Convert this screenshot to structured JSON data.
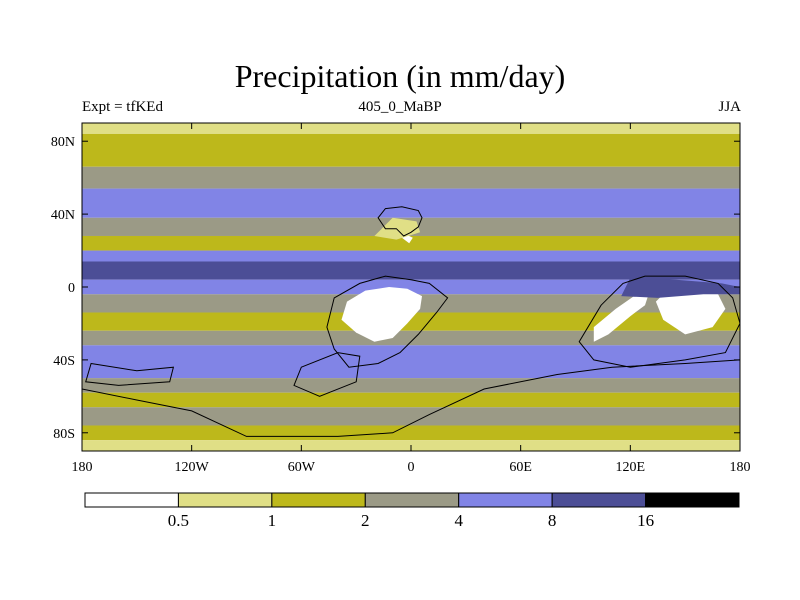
{
  "title": "Precipitation (in mm/day)",
  "left_subtitle": "Expt = tfKEd",
  "center_subtitle": "405_0_MaBP",
  "right_subtitle": "JJA",
  "colors": {
    "white": "#ffffff",
    "pale_yellow": "#e0df86",
    "olive": "#bdb81b",
    "gray": "#9b9a86",
    "periwinkle": "#8184e6",
    "indigo": "#4c4e96",
    "black": "#000000"
  },
  "chart_data": {
    "type": "contour-map",
    "projection": "cylindrical-equidistant",
    "variable": "precipitation",
    "units": "mm/day",
    "lon_range": [
      -180,
      180
    ],
    "lat_range": [
      -90,
      90
    ],
    "x_ticks": [
      {
        "value": -180,
        "label": "180"
      },
      {
        "value": -120,
        "label": "120W"
      },
      {
        "value": -60,
        "label": "60W"
      },
      {
        "value": 0,
        "label": "0"
      },
      {
        "value": 60,
        "label": "60E"
      },
      {
        "value": 120,
        "label": "120E"
      },
      {
        "value": 180,
        "label": "180"
      }
    ],
    "y_ticks": [
      {
        "value": 80,
        "label": "80N"
      },
      {
        "value": 40,
        "label": "40N"
      },
      {
        "value": 0,
        "label": "0"
      },
      {
        "value": -40,
        "label": "40S"
      },
      {
        "value": -80,
        "label": "80S"
      }
    ],
    "contour_levels": [
      0.5,
      1,
      2,
      4,
      8,
      16
    ],
    "colorbar_labels": [
      "0.5",
      "1",
      "2",
      "4",
      "8",
      "16"
    ],
    "colorbar_colors": [
      "#ffffff",
      "#e0df86",
      "#bdb81b",
      "#9b9a86",
      "#8184e6",
      "#4c4e96",
      "#000000"
    ],
    "bands": [
      {
        "lat_min": 84,
        "lat_max": 90,
        "level_index": 1
      },
      {
        "lat_min": 66,
        "lat_max": 84,
        "level_index": 2
      },
      {
        "lat_min": 54,
        "lat_max": 66,
        "level_index": 3
      },
      {
        "lat_min": 38,
        "lat_max": 54,
        "level_index": 4
      },
      {
        "lat_min": 28,
        "lat_max": 38,
        "level_index": 3
      },
      {
        "lat_min": 20,
        "lat_max": 28,
        "level_index": 2
      },
      {
        "lat_min": 14,
        "lat_max": 20,
        "level_index": 4
      },
      {
        "lat_min": 4,
        "lat_max": 14,
        "level_index": 5
      },
      {
        "lat_min": -4,
        "lat_max": 4,
        "level_index": 4
      },
      {
        "lat_min": -14,
        "lat_max": -4,
        "level_index": 3
      },
      {
        "lat_min": -24,
        "lat_max": -14,
        "level_index": 2
      },
      {
        "lat_min": -32,
        "lat_max": -24,
        "level_index": 3
      },
      {
        "lat_min": -50,
        "lat_max": -32,
        "level_index": 4
      },
      {
        "lat_min": -58,
        "lat_max": -50,
        "level_index": 3
      },
      {
        "lat_min": -66,
        "lat_max": -58,
        "level_index": 2
      },
      {
        "lat_min": -76,
        "lat_max": -66,
        "level_index": 3
      },
      {
        "lat_min": -84,
        "lat_max": -76,
        "level_index": 2
      },
      {
        "lat_min": -90,
        "lat_max": -84,
        "level_index": 1
      }
    ],
    "patches": [
      {
        "level_index": 0,
        "points": [
          [
            -35,
            -8
          ],
          [
            -25,
            -2
          ],
          [
            -12,
            0
          ],
          [
            -2,
            -1
          ],
          [
            6,
            -5
          ],
          [
            5,
            -12
          ],
          [
            -2,
            -20
          ],
          [
            -10,
            -28
          ],
          [
            -20,
            -30
          ],
          [
            -30,
            -25
          ],
          [
            -38,
            -18
          ]
        ]
      },
      {
        "level_index": 0,
        "points": [
          [
            100,
            -22
          ],
          [
            112,
            -12
          ],
          [
            122,
            -5
          ],
          [
            130,
            -4
          ],
          [
            128,
            -10
          ],
          [
            120,
            -16
          ],
          [
            108,
            -26
          ],
          [
            100,
            -30
          ]
        ]
      },
      {
        "level_index": 0,
        "points": [
          [
            140,
            -2
          ],
          [
            155,
            0
          ],
          [
            168,
            -4
          ],
          [
            172,
            -12
          ],
          [
            165,
            -22
          ],
          [
            150,
            -26
          ],
          [
            138,
            -18
          ],
          [
            134,
            -8
          ]
        ]
      },
      {
        "level_index": 0,
        "points": [
          [
            -5,
            27
          ],
          [
            -1,
            24
          ],
          [
            1,
            27
          ],
          [
            -3,
            29
          ]
        ]
      },
      {
        "level_index": 1,
        "points": [
          [
            -20,
            28
          ],
          [
            -8,
            26
          ],
          [
            5,
            30
          ],
          [
            3,
            36
          ],
          [
            -10,
            38
          ]
        ]
      },
      {
        "level_index": 5,
        "points": [
          [
            120,
            5
          ],
          [
            145,
            4
          ],
          [
            170,
            2
          ],
          [
            180,
            0
          ],
          [
            180,
            -4
          ],
          [
            160,
            -4
          ],
          [
            135,
            -6
          ],
          [
            115,
            -5
          ]
        ]
      }
    ],
    "continents": [
      {
        "name": "laurasia",
        "points": [
          [
            -14,
            43
          ],
          [
            -5,
            44
          ],
          [
            4,
            42
          ],
          [
            6,
            38
          ],
          [
            4,
            33
          ],
          [
            0,
            30
          ],
          [
            -4,
            28
          ],
          [
            -8,
            32
          ],
          [
            -14,
            32
          ],
          [
            -18,
            38
          ]
        ]
      },
      {
        "name": "gondwana-africa-sa",
        "points": [
          [
            -42,
            -6
          ],
          [
            -28,
            2
          ],
          [
            -14,
            6
          ],
          [
            0,
            4
          ],
          [
            10,
            2
          ],
          [
            20,
            -6
          ],
          [
            14,
            -14
          ],
          [
            4,
            -26
          ],
          [
            -6,
            -36
          ],
          [
            -18,
            -42
          ],
          [
            -34,
            -44
          ],
          [
            -42,
            -34
          ],
          [
            -46,
            -22
          ]
        ]
      },
      {
        "name": "gondwana-east",
        "points": [
          [
            104,
            -10
          ],
          [
            116,
            2
          ],
          [
            128,
            6
          ],
          [
            150,
            6
          ],
          [
            168,
            2
          ],
          [
            176,
            -6
          ],
          [
            180,
            -20
          ],
          [
            172,
            -36
          ],
          [
            150,
            -40
          ],
          [
            120,
            -44
          ],
          [
            100,
            -40
          ],
          [
            92,
            -30
          ]
        ]
      },
      {
        "name": "antarctica-south",
        "points": [
          [
            -180,
            -56
          ],
          [
            -150,
            -62
          ],
          [
            -120,
            -68
          ],
          [
            -90,
            -82
          ],
          [
            -40,
            -82
          ],
          [
            -10,
            -80
          ],
          [
            10,
            -70
          ],
          [
            40,
            -56
          ],
          [
            80,
            -48
          ],
          [
            110,
            -44
          ],
          [
            150,
            -42
          ],
          [
            180,
            -40
          ],
          [
            180,
            -90
          ],
          [
            -180,
            -90
          ]
        ]
      },
      {
        "name": "west-peninsula",
        "points": [
          [
            -175,
            -42
          ],
          [
            -150,
            -46
          ],
          [
            -130,
            -44
          ],
          [
            -132,
            -52
          ],
          [
            -160,
            -54
          ],
          [
            -178,
            -52
          ]
        ]
      },
      {
        "name": "central-spur",
        "points": [
          [
            -60,
            -44
          ],
          [
            -40,
            -36
          ],
          [
            -28,
            -38
          ],
          [
            -30,
            -52
          ],
          [
            -50,
            -60
          ],
          [
            -64,
            -54
          ]
        ]
      }
    ]
  }
}
